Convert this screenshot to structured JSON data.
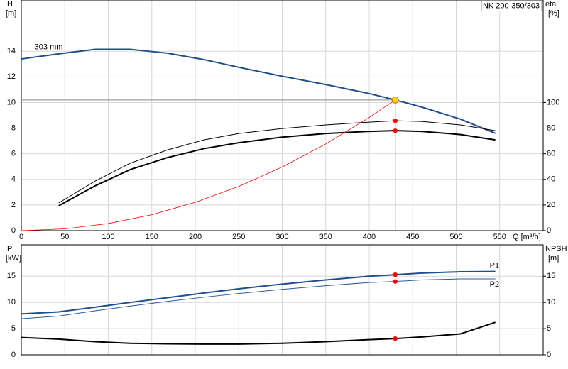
{
  "chart_data": [
    {
      "type": "line",
      "title": "NK 200-350/303",
      "xlabel": "Q [m³/h]",
      "ylabel": "H",
      "yunit": "[m]",
      "y2label": "eta",
      "y2unit": "[%]",
      "xlim": [
        0,
        600
      ],
      "xticks": [
        0,
        50,
        100,
        150,
        200,
        250,
        300,
        350,
        400,
        450,
        500,
        550
      ],
      "ylim": [
        0,
        18
      ],
      "yticks": [
        0,
        2,
        4,
        6,
        8,
        10,
        12,
        14
      ],
      "y2lim": [
        0,
        180
      ],
      "y2ticks": [
        0,
        20,
        40,
        60,
        80,
        100
      ],
      "grid": true,
      "operating_point": {
        "x": 430,
        "y": 10.2
      },
      "series": [
        {
          "name": "303 mm",
          "color": "#1f4e8c",
          "width": 2,
          "x": [
            0,
            43,
            85,
            125,
            168,
            210,
            250,
            300,
            350,
            400,
            430,
            460,
            505,
            545
          ],
          "values": [
            13.4,
            13.8,
            14.15,
            14.15,
            13.85,
            13.35,
            12.75,
            12.05,
            11.4,
            10.7,
            10.2,
            9.65,
            8.7,
            7.6
          ]
        },
        {
          "color": "#000000",
          "width": 1,
          "axis": "y2",
          "x": [
            43,
            85,
            125,
            168,
            210,
            250,
            300,
            350,
            400,
            430,
            460,
            505,
            545
          ],
          "values": [
            21.6,
            38.7,
            52.6,
            63,
            70.8,
            75.8,
            79.7,
            82.5,
            84.7,
            85.8,
            85.2,
            82.5,
            78
          ]
        },
        {
          "color": "#000000",
          "width": 2,
          "axis": "y2",
          "x": [
            43,
            85,
            125,
            168,
            210,
            250,
            300,
            350,
            400,
            430,
            460,
            505,
            545
          ],
          "values": [
            19.4,
            35,
            47.6,
            57,
            64,
            68.6,
            73,
            75.8,
            77.5,
            78,
            77.5,
            75,
            70.8
          ]
        },
        {
          "color": "#ff0000",
          "width": 0.8,
          "x": [
            0,
            50,
            100,
            150,
            200,
            250,
            300,
            350,
            400,
            430
          ],
          "values": [
            0,
            0.14,
            0.55,
            1.24,
            2.21,
            3.45,
            4.97,
            6.76,
            8.83,
            10.2
          ]
        }
      ]
    },
    {
      "type": "line",
      "ylabel": "P",
      "yunit": "[kW]",
      "y2label": "NPSH",
      "y2unit": "[m]",
      "xlim": [
        0,
        600
      ],
      "xticks": [
        0,
        50,
        100,
        150,
        200,
        250,
        300,
        350,
        400,
        450,
        500,
        550
      ],
      "ylim": [
        0,
        21
      ],
      "yticks": [
        0,
        5,
        10,
        15
      ],
      "y2lim": [
        0,
        21
      ],
      "y2ticks": [
        0,
        5,
        10,
        15
      ],
      "grid": true,
      "operating_point": {
        "x": 430
      },
      "series": [
        {
          "name": "P1",
          "color": "#1f4e8c",
          "width": 2,
          "x": [
            0,
            43,
            85,
            125,
            168,
            210,
            250,
            300,
            350,
            400,
            430,
            460,
            505,
            545
          ],
          "values": [
            7.8,
            8.2,
            9.1,
            10.0,
            10.9,
            11.8,
            12.6,
            13.5,
            14.3,
            15.0,
            15.3,
            15.6,
            15.85,
            15.9
          ]
        },
        {
          "name": "P2",
          "color": "#2a5b9a",
          "width": 1,
          "x": [
            0,
            43,
            85,
            125,
            168,
            210,
            250,
            300,
            350,
            400,
            430,
            460,
            505,
            545
          ],
          "values": [
            6.9,
            7.4,
            8.4,
            9.3,
            10.2,
            11.0,
            11.7,
            12.5,
            13.2,
            13.8,
            14.0,
            14.3,
            14.5,
            14.5
          ]
        },
        {
          "color": "#000000",
          "width": 2,
          "axis": "y2",
          "x": [
            0,
            43,
            85,
            125,
            168,
            210,
            250,
            300,
            350,
            400,
            430,
            460,
            505,
            545
          ],
          "values": [
            3.3,
            3.0,
            2.5,
            2.2,
            2.1,
            2.05,
            2.05,
            2.2,
            2.5,
            2.9,
            3.1,
            3.4,
            4.0,
            6.2
          ]
        }
      ]
    }
  ]
}
